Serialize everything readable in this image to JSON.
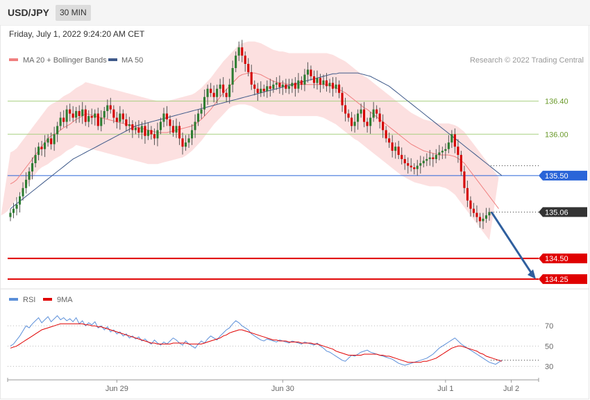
{
  "header": {
    "symbol": "USD/JPY",
    "timeframe": "30 MIN",
    "datetime": "Friday, July 1, 2022 9:24:20 AM CET"
  },
  "legend": {
    "ma20_label": "MA 20 + Bollinger Bands",
    "ma50_label": "MA 50",
    "copyright": "Research © 2022 Trading Central",
    "rsi_label": "RSI",
    "rsi_ma_label": "9MA"
  },
  "colors": {
    "bull": "#2e7d32",
    "bear": "#d50000",
    "band": "#fbd3d3",
    "ma20": "#f08080",
    "ma50": "#3f5a8a",
    "support": "#e00000",
    "resistance": "#a8d080",
    "pivot": "#2a65d8",
    "price_tag": "#333333",
    "forecast_arrow": "#2f5f9e",
    "rsi": "#5b8fd9",
    "rsi_ma": "#e00000"
  },
  "chart_data": [
    {
      "type": "candlestick",
      "pair": "USD/JPY",
      "interval": "30 MIN",
      "x_labels": [
        "Jun 29",
        "Jun 30",
        "Jul 1",
        "Jul 2"
      ],
      "x_label_index": [
        34,
        87,
        139,
        160
      ],
      "ylim": [
        134.14,
        136.85
      ],
      "levels": [
        {
          "label": "136.40",
          "value": 136.4,
          "kind": "resistance"
        },
        {
          "label": "136.00",
          "value": 136.0,
          "kind": "resistance"
        },
        {
          "label": "135.50",
          "value": 135.5,
          "kind": "pivot"
        },
        {
          "label": "135.06",
          "value": 135.06,
          "kind": "last"
        },
        {
          "label": "134.50",
          "value": 134.5,
          "kind": "support"
        },
        {
          "label": "134.25",
          "value": 134.25,
          "kind": "support"
        }
      ],
      "forecast": {
        "from": 135.06,
        "to": 134.25
      },
      "close": [
        135.05,
        135.1,
        135.15,
        135.25,
        135.35,
        135.45,
        135.55,
        135.65,
        135.75,
        135.85,
        135.82,
        135.9,
        135.95,
        135.88,
        136.0,
        136.1,
        136.2,
        136.15,
        136.3,
        136.25,
        136.2,
        136.28,
        136.22,
        136.3,
        136.15,
        136.22,
        136.2,
        136.25,
        136.1,
        136.2,
        136.28,
        136.35,
        136.3,
        136.2,
        136.15,
        136.25,
        136.18,
        136.1,
        136.12,
        136.05,
        136.08,
        136.02,
        136.1,
        135.98,
        136.05,
        136.0,
        135.95,
        136.05,
        136.15,
        136.25,
        136.18,
        136.1,
        136.02,
        136.1,
        135.95,
        135.85,
        135.9,
        135.95,
        136.05,
        136.15,
        136.25,
        136.3,
        136.45,
        136.55,
        136.5,
        136.45,
        136.55,
        136.6,
        136.5,
        136.45,
        136.6,
        136.8,
        136.95,
        137.05,
        136.95,
        136.85,
        136.75,
        136.6,
        136.55,
        136.5,
        136.55,
        136.52,
        136.58,
        136.55,
        136.6,
        136.62,
        136.57,
        136.6,
        136.55,
        136.58,
        136.62,
        136.55,
        136.65,
        136.6,
        136.72,
        136.78,
        136.7,
        136.62,
        136.68,
        136.6,
        136.65,
        136.58,
        136.62,
        136.55,
        136.6,
        136.5,
        136.35,
        136.25,
        136.2,
        136.1,
        136.15,
        136.25,
        136.3,
        136.15,
        136.1,
        136.2,
        136.3,
        136.25,
        136.15,
        136.05,
        135.95,
        135.9,
        135.8,
        135.85,
        135.75,
        135.7,
        135.65,
        135.62,
        135.6,
        135.58,
        135.62,
        135.65,
        135.68,
        135.7,
        135.72,
        135.7,
        135.75,
        135.78,
        135.8,
        135.82,
        135.9,
        136.0,
        135.85,
        135.75,
        135.55,
        135.35,
        135.2,
        135.1,
        135.05,
        135.0,
        134.95,
        134.98,
        135.02,
        135.06
      ],
      "ma20": [
        135.4,
        135.42,
        135.45,
        135.5,
        135.55,
        135.6,
        135.65,
        135.7,
        135.75,
        135.8,
        135.85,
        135.9,
        135.95,
        135.98,
        136.0,
        136.02,
        136.05,
        136.08,
        136.1,
        136.12,
        136.15,
        136.18,
        136.2,
        136.22,
        136.25,
        136.24,
        136.23,
        136.22,
        136.21,
        136.2,
        136.19,
        136.18,
        136.17,
        136.16,
        136.15,
        136.14,
        136.13,
        136.12,
        136.11,
        136.1,
        136.09,
        136.08,
        136.07,
        136.06,
        136.05,
        136.04,
        136.03,
        136.02,
        136.02,
        136.02,
        136.02,
        136.03,
        136.04,
        136.05,
        136.06,
        136.07,
        136.08,
        136.09,
        136.1,
        136.12,
        136.15,
        136.18,
        136.22,
        136.26,
        136.3,
        136.35,
        136.4,
        136.45,
        136.5,
        136.54,
        136.58,
        136.62,
        136.66,
        136.7,
        136.72,
        136.73,
        136.74,
        136.74,
        136.74,
        136.73,
        136.72,
        136.7,
        136.68,
        136.66,
        136.64,
        136.63,
        136.62,
        136.62,
        136.61,
        136.6,
        136.6,
        136.6,
        136.6,
        136.6,
        136.6,
        136.6,
        136.6,
        136.6,
        136.6,
        136.6,
        136.6,
        136.6,
        136.59,
        136.58,
        136.56,
        136.54,
        136.52,
        136.5,
        136.47,
        136.44,
        136.41,
        136.38,
        136.35,
        136.32,
        136.3,
        136.27,
        136.24,
        136.21,
        136.18,
        136.15,
        136.12,
        136.09,
        136.06,
        136.03,
        136.0,
        135.97,
        135.94,
        135.91,
        135.88,
        135.86,
        135.84,
        135.82,
        135.8,
        135.79,
        135.78,
        135.77,
        135.76,
        135.75,
        135.75,
        135.75,
        135.75,
        135.74,
        135.73,
        135.71,
        135.68,
        135.65,
        135.6,
        135.55,
        135.5,
        135.45,
        135.4,
        135.35,
        135.3,
        135.25,
        135.2,
        135.15,
        135.1
      ],
      "ma50": [
        135.1,
        135.13,
        135.16,
        135.19,
        135.22,
        135.25,
        135.28,
        135.31,
        135.34,
        135.37,
        135.4,
        135.43,
        135.46,
        135.49,
        135.52,
        135.55,
        135.58,
        135.61,
        135.64,
        135.67,
        135.7,
        135.72,
        135.74,
        135.76,
        135.78,
        135.8,
        135.82,
        135.84,
        135.86,
        135.88,
        135.9,
        135.92,
        135.94,
        135.96,
        135.98,
        136.0,
        136.02,
        136.04,
        136.06,
        136.08,
        136.1,
        136.11,
        136.12,
        136.13,
        136.14,
        136.15,
        136.16,
        136.17,
        136.18,
        136.19,
        136.2,
        136.21,
        136.22,
        136.23,
        136.24,
        136.25,
        136.26,
        136.27,
        136.28,
        136.29,
        136.3,
        136.31,
        136.32,
        136.33,
        136.34,
        136.35,
        136.36,
        136.37,
        136.38,
        136.39,
        136.4,
        136.41,
        136.42,
        136.43,
        136.44,
        136.45,
        136.46,
        136.47,
        136.48,
        136.49,
        136.5,
        136.51,
        136.52,
        136.53,
        136.54,
        136.55,
        136.56,
        136.57,
        136.58,
        136.59,
        136.6,
        136.61,
        136.62,
        136.63,
        136.64,
        136.65,
        136.66,
        136.67,
        136.68,
        136.69,
        136.7,
        136.71,
        136.72,
        136.73,
        136.73,
        136.74,
        136.74,
        136.74,
        136.74,
        136.74,
        136.74,
        136.74,
        136.73,
        136.72,
        136.71,
        136.7,
        136.68,
        136.66,
        136.64,
        136.62,
        136.6,
        136.58,
        136.55,
        136.52,
        136.49,
        136.46,
        136.43,
        136.4,
        136.37,
        136.34,
        136.31,
        136.28,
        136.25,
        136.22,
        136.19,
        136.16,
        136.13,
        136.1,
        136.07,
        136.04,
        136.01,
        135.98,
        135.95,
        135.92,
        135.89,
        135.86,
        135.83,
        135.8,
        135.77,
        135.74,
        135.71,
        135.68,
        135.65,
        135.62,
        135.59,
        135.56,
        135.53,
        135.5
      ],
      "band_width": 0.38
    },
    {
      "type": "line",
      "name": "RSI",
      "ylim": [
        18,
        90
      ],
      "y_ticks": [
        70,
        50,
        30
      ],
      "series": [
        {
          "name": "RSI",
          "values": [
            50,
            52,
            56,
            60,
            65,
            70,
            68,
            72,
            75,
            78,
            73,
            76,
            79,
            74,
            77,
            80,
            76,
            78,
            75,
            77,
            74,
            78,
            72,
            75,
            70,
            73,
            71,
            74,
            68,
            70,
            66,
            69,
            64,
            66,
            62,
            64,
            60,
            62,
            58,
            60,
            57,
            59,
            55,
            57,
            54,
            52,
            56,
            53,
            51,
            54,
            52,
            55,
            58,
            56,
            53,
            51,
            55,
            52,
            50,
            48,
            52,
            55,
            53,
            57,
            60,
            58,
            56,
            60,
            63,
            66,
            68,
            72,
            75,
            73,
            70,
            68,
            66,
            62,
            60,
            58,
            56,
            55,
            57,
            56,
            55,
            54,
            56,
            55,
            54,
            53,
            55,
            54,
            53,
            52,
            54,
            53,
            52,
            51,
            53,
            50,
            48,
            45,
            44,
            42,
            40,
            38,
            36,
            35,
            38,
            41,
            40,
            42,
            44,
            45,
            46,
            44,
            43,
            42,
            41,
            40,
            39,
            38,
            37,
            35,
            33,
            32,
            31,
            32,
            33,
            34,
            35,
            36,
            37,
            38,
            40,
            42,
            45,
            48,
            50,
            52,
            54,
            56,
            58,
            55,
            52,
            50,
            48,
            46,
            44,
            42,
            40,
            38,
            36,
            34,
            33,
            32,
            34,
            36
          ]
        },
        {
          "name": "9MA",
          "values": [
            48,
            49,
            50,
            52,
            54,
            56,
            58,
            60,
            62,
            64,
            66,
            67,
            68,
            69,
            70,
            71,
            72,
            72,
            72,
            72,
            72,
            72,
            72,
            72,
            71,
            71,
            70,
            70,
            69,
            69,
            68,
            67,
            66,
            65,
            64,
            63,
            62,
            61,
            60,
            59,
            58,
            57,
            56,
            55,
            54,
            53,
            53,
            52,
            52,
            52,
            52,
            52,
            53,
            53,
            53,
            53,
            53,
            52,
            52,
            52,
            52,
            52,
            53,
            54,
            55,
            56,
            57,
            58,
            60,
            61,
            63,
            64,
            65,
            66,
            66,
            65,
            64,
            63,
            62,
            61,
            60,
            59,
            58,
            57,
            56,
            56,
            55,
            55,
            55,
            54,
            54,
            54,
            54,
            53,
            53,
            53,
            53,
            52,
            52,
            51,
            50,
            49,
            48,
            47,
            45,
            44,
            43,
            42,
            41,
            41,
            41,
            41,
            41,
            42,
            42,
            42,
            42,
            42,
            41,
            41,
            40,
            40,
            39,
            38,
            37,
            36,
            35,
            34,
            34,
            34,
            34,
            34,
            35,
            35,
            36,
            37,
            38,
            40,
            42,
            44,
            46,
            48,
            49,
            50,
            50,
            49,
            48,
            47,
            46,
            45,
            43,
            42,
            40,
            39,
            38,
            37,
            36,
            35
          ]
        }
      ]
    }
  ]
}
